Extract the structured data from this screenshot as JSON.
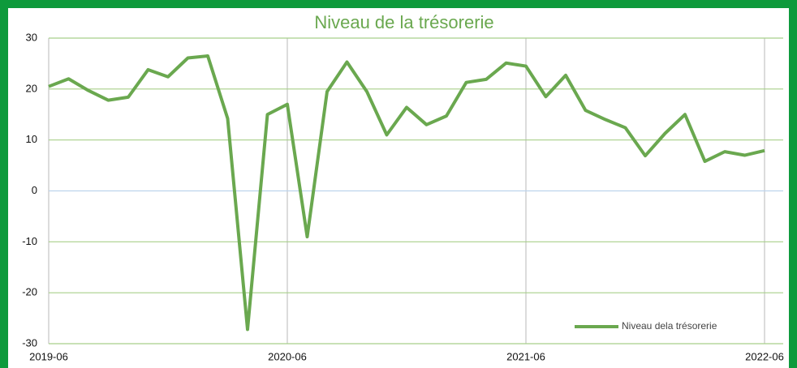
{
  "chart_data": {
    "type": "line",
    "title": "Niveau de la trésorerie",
    "x": [
      "2019-06",
      "2019-07",
      "2019-08",
      "2019-09",
      "2019-10",
      "2019-11",
      "2019-12",
      "2020-01",
      "2020-02",
      "2020-03",
      "2020-04",
      "2020-05",
      "2020-06",
      "2020-07",
      "2020-08",
      "2020-09",
      "2020-10",
      "2020-11",
      "2020-12",
      "2021-01",
      "2021-02",
      "2021-03",
      "2021-04",
      "2021-05",
      "2021-06",
      "2021-07",
      "2021-08",
      "2021-09",
      "2021-10",
      "2021-11",
      "2021-12",
      "2022-01",
      "2022-02",
      "2022-03",
      "2022-04",
      "2022-05",
      "2022-06"
    ],
    "series": [
      {
        "name": "Niveau dela trésorerie",
        "color": "#6aa84f",
        "values": [
          20.5,
          22,
          19.7,
          17.8,
          18.4,
          23.8,
          22.4,
          26.1,
          26.5,
          14.2,
          -27.2,
          15,
          17,
          -9,
          19.5,
          25.3,
          19.5,
          11,
          16.4,
          13,
          14.7,
          21.3,
          21.9,
          25.1,
          24.5,
          18.5,
          22.7,
          15.8,
          14,
          12.4,
          6.9,
          11.3,
          15,
          5.8,
          7.7,
          7,
          7.9
        ]
      }
    ],
    "xticks": [
      "2019-06",
      "2020-06",
      "2021-06",
      "2022-06"
    ],
    "ylim": [
      -30,
      30
    ],
    "yticks": [
      -30,
      -20,
      -10,
      0,
      10,
      20,
      30
    ],
    "grid": true,
    "legend": "lower right"
  }
}
